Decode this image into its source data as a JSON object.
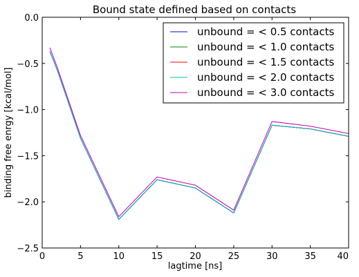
{
  "chart_data": {
    "type": "line",
    "title": "Bound state defined based on contacts",
    "xlabel": "lagtime [ns]",
    "ylabel": "binding free enrgy [kcal/mol]",
    "xlim": [
      0,
      40
    ],
    "ylim": [
      -2.5,
      0.0
    ],
    "xticks": [
      0,
      5,
      10,
      15,
      20,
      25,
      30,
      35,
      40
    ],
    "xtick_labels": [
      "0",
      "5",
      "10",
      "15",
      "20",
      "25",
      "30",
      "35",
      "40"
    ],
    "yticks": [
      0.0,
      -0.5,
      -1.0,
      -1.5,
      -2.0,
      -2.5
    ],
    "ytick_labels": [
      "0.0",
      "−0.5",
      "−1.0",
      "−1.5",
      "−2.0",
      "−2.5"
    ],
    "grid": false,
    "legend_position": "top-right",
    "x": [
      1,
      2,
      5,
      10,
      15,
      20,
      25,
      30,
      35,
      40
    ],
    "series": [
      {
        "name": "unbound = < 0.5 contacts",
        "color": "#0000ff",
        "values": [
          -0.37,
          -0.58,
          -1.31,
          -2.19,
          -1.76,
          -1.85,
          -2.12,
          -1.17,
          -1.21,
          -1.29
        ]
      },
      {
        "name": "unbound = < 1.0 contacts",
        "color": "#008000",
        "values": [
          -0.37,
          -0.58,
          -1.31,
          -2.19,
          -1.76,
          -1.85,
          -2.12,
          -1.17,
          -1.21,
          -1.29
        ]
      },
      {
        "name": "unbound = < 1.5 contacts",
        "color": "#ff0000",
        "values": [
          -0.37,
          -0.58,
          -1.31,
          -2.19,
          -1.76,
          -1.85,
          -2.12,
          -1.17,
          -1.21,
          -1.29
        ]
      },
      {
        "name": "unbound = < 2.0 contacts",
        "color": "#00bfbf",
        "values": [
          -0.37,
          -0.58,
          -1.31,
          -2.19,
          -1.76,
          -1.85,
          -2.12,
          -1.17,
          -1.21,
          -1.29
        ]
      },
      {
        "name": "unbound = < 3.0 contacts",
        "color": "#bf00bf",
        "values": [
          -0.33,
          -0.55,
          -1.28,
          -2.16,
          -1.73,
          -1.82,
          -2.09,
          -1.13,
          -1.18,
          -1.26
        ]
      }
    ]
  }
}
